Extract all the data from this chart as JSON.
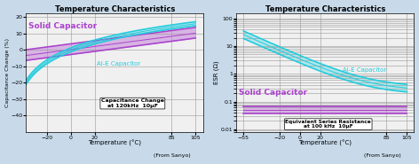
{
  "title": "Temperature Characteristics",
  "bg_color": "#c8daea",
  "plot_bg_color": "#f0f0f0",
  "grid_color": "#999999",
  "left": {
    "xlabel": "Temperature (°C)",
    "ylabel": "Capacitance Change (%)",
    "xlim": [
      -38,
      112
    ],
    "ylim": [
      -50,
      22
    ],
    "xticks": [
      -20,
      0,
      20,
      85,
      105
    ],
    "yticks": [
      -40,
      -30,
      -20,
      -10,
      0,
      10,
      20
    ],
    "annotation": "Capacitance Change\nat 120kHz  10μF",
    "from_sanyo": "(From Sanyo)",
    "solid_label": "Solid Capacitor",
    "aie_label": "Al-E Capacitor",
    "solid_color": "#aa44cc",
    "aie_color": "#22ccdd"
  },
  "right": {
    "xlabel": "Temperature (°C)",
    "ylabel": "ESR (Ω)",
    "xlim": [
      -62,
      112
    ],
    "ylim_log": [
      0.008,
      150
    ],
    "xticks": [
      -55,
      -20,
      0,
      20,
      85,
      105
    ],
    "annotation": "Equivalent Series Resistance\nat 100 kHz  10μF",
    "from_sanyo": "(From Sanyo)",
    "solid_label": "Solid Capacitor",
    "aie_label": "Al-E Capacitor",
    "solid_color": "#aa44cc",
    "aie_color": "#22ccdd"
  }
}
